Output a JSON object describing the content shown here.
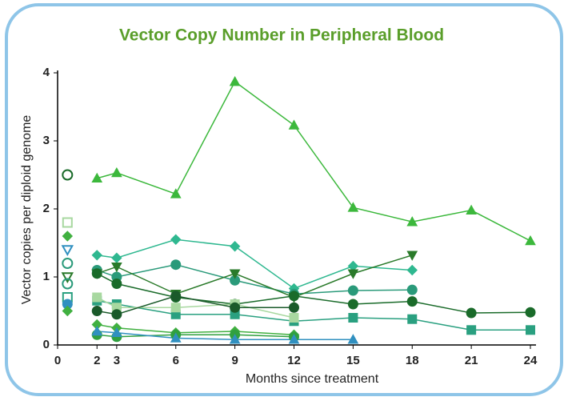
{
  "chart_data": {
    "type": "line",
    "title": "Vector Copy Number in Peripheral Blood",
    "xlabel": "Months since treatment",
    "ylabel": "Vector copies per diploid genome",
    "x": [
      2,
      3,
      6,
      9,
      12,
      15,
      18,
      21,
      24
    ],
    "xlim": [
      0,
      24.4
    ],
    "ylim": [
      0,
      4.05
    ],
    "xticks": [
      0,
      2,
      3,
      6,
      9,
      12,
      15,
      18,
      21,
      24
    ],
    "yticks": [
      0,
      1,
      2,
      3,
      4
    ],
    "series": [
      {
        "color": "#3cb83c",
        "marker": "triangle",
        "values": [
          2.45,
          2.53,
          2.22,
          3.87,
          3.23,
          2.02,
          1.81,
          1.98,
          1.53
        ]
      },
      {
        "color": "#2fb890",
        "marker": "diamond",
        "values": [
          1.32,
          1.28,
          1.55,
          1.45,
          0.83,
          1.16,
          1.1,
          null,
          null
        ]
      },
      {
        "color": "#2a9a7a",
        "marker": "circle",
        "values": [
          1.1,
          1.0,
          1.18,
          0.95,
          0.75,
          0.8,
          0.81,
          null,
          null
        ]
      },
      {
        "color": "#2a7a2a",
        "marker": "triangle-down",
        "values": [
          1.05,
          1.15,
          0.75,
          1.05,
          0.7,
          1.05,
          1.32,
          null,
          null
        ]
      },
      {
        "color": "#1a6b2a",
        "marker": "circle",
        "values": [
          1.05,
          0.9,
          0.7,
          0.6,
          0.72,
          0.6,
          0.64,
          0.47,
          0.48
        ]
      },
      {
        "color": "#2aa080",
        "marker": "square",
        "values": [
          0.65,
          0.6,
          0.45,
          0.45,
          0.35,
          0.4,
          0.38,
          0.22,
          0.22
        ]
      },
      {
        "color": "#a8d8a0",
        "marker": "square",
        "values": [
          0.7,
          0.55,
          0.55,
          0.6,
          0.4,
          null,
          null,
          null,
          null
        ]
      },
      {
        "color": "#1a5a2a",
        "marker": "circle",
        "values": [
          0.5,
          0.45,
          0.72,
          0.55,
          0.55,
          null,
          null,
          null,
          null
        ]
      },
      {
        "color": "#40b040",
        "marker": "diamond",
        "values": [
          0.3,
          0.25,
          0.18,
          0.2,
          0.15,
          null,
          null,
          null,
          null
        ]
      },
      {
        "color": "#30a040",
        "marker": "circle",
        "values": [
          0.15,
          0.12,
          0.15,
          0.15,
          0.12,
          null,
          null,
          null,
          null
        ]
      },
      {
        "color": "#3090c0",
        "marker": "triangle",
        "values": [
          0.2,
          0.18,
          0.1,
          0.08,
          0.08,
          0.08,
          null,
          null,
          null
        ]
      }
    ],
    "baseline": {
      "x": 0.5,
      "values": [
        2.5,
        1.8,
        1.6,
        1.4,
        1.2,
        1.0,
        0.9,
        0.7,
        0.6,
        0.5
      ],
      "colors": [
        "#1a6b2a",
        "#a8d8a0",
        "#40b040",
        "#3090c0",
        "#2a9a7a",
        "#2a7a2a",
        "#2a9a7a",
        "#2aa080",
        "#3090c0",
        "#40b040"
      ],
      "markers": [
        "circle",
        "square",
        "diamond",
        "triangle-down",
        "circle",
        "triangle-down",
        "circle",
        "square",
        "circle",
        "diamond"
      ],
      "open": [
        true,
        true,
        false,
        true,
        true,
        true,
        true,
        true,
        false,
        false
      ]
    }
  }
}
